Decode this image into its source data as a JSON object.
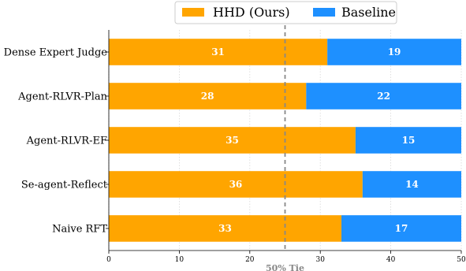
{
  "chart_data": {
    "type": "bar",
    "orientation": "horizontal",
    "stacked": true,
    "categories": [
      "Dense Expert Judge",
      "Agent-RLVR-Plan",
      "Agent-RLVR-EF",
      "Se-agent-Reflect",
      "Naive RFT"
    ],
    "series": [
      {
        "name": "HHD (Ours)",
        "color": "#FFA500",
        "values": [
          31,
          28,
          35,
          36,
          33
        ]
      },
      {
        "name": "Baseline",
        "color": "#1E90FF",
        "values": [
          19,
          22,
          15,
          14,
          17
        ]
      }
    ],
    "xlim": [
      0,
      50
    ],
    "xticks": [
      "0",
      "10",
      "20",
      "30",
      "40",
      "50"
    ],
    "reference_line": {
      "value": 25,
      "label": "50% Tie",
      "color": "#888888"
    },
    "legend_position": "top-center",
    "grid": "x-dotted"
  }
}
